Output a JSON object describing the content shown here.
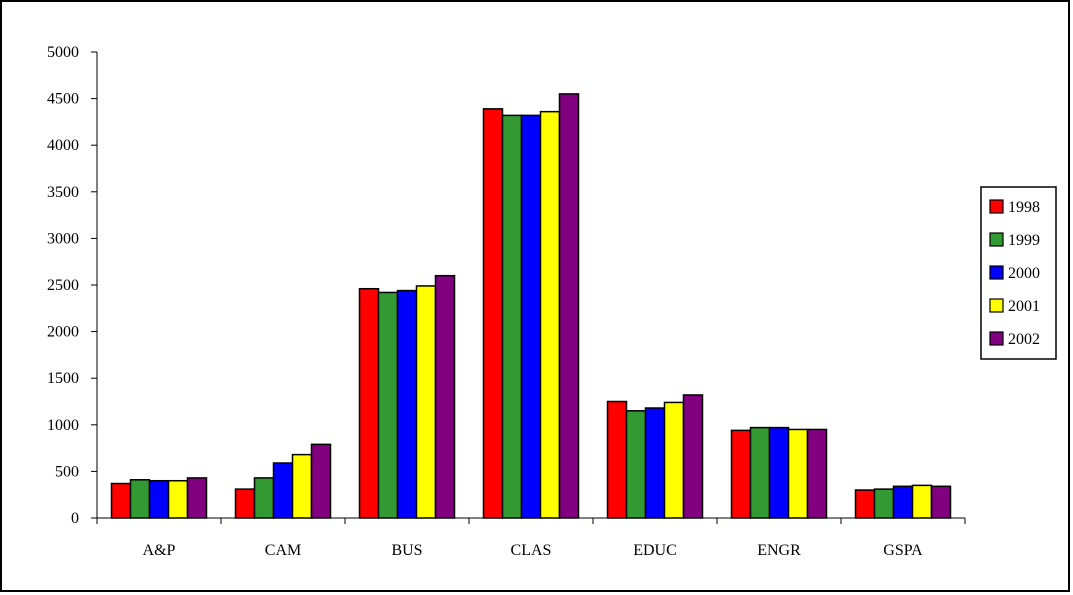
{
  "chart_data": {
    "type": "bar",
    "title": "",
    "xlabel": "",
    "ylabel": "",
    "categories": [
      "A&P",
      "CAM",
      "BUS",
      "CLAS",
      "EDUC",
      "ENGR",
      "GSPA"
    ],
    "ylim": [
      0,
      5000
    ],
    "yticks": [
      0,
      500,
      1000,
      1500,
      2000,
      2500,
      3000,
      3500,
      4000,
      4500,
      5000
    ],
    "grid": false,
    "legend_position": "right",
    "series": [
      {
        "name": "1998",
        "color": "#ff0000",
        "values": [
          370,
          310,
          2460,
          4390,
          1250,
          940,
          300
        ]
      },
      {
        "name": "1999",
        "color": "#339933",
        "values": [
          410,
          430,
          2420,
          4320,
          1150,
          970,
          310
        ]
      },
      {
        "name": "2000",
        "color": "#0000ff",
        "values": [
          400,
          590,
          2440,
          4320,
          1180,
          970,
          340
        ]
      },
      {
        "name": "2001",
        "color": "#ffff00",
        "values": [
          400,
          680,
          2490,
          4360,
          1240,
          950,
          350
        ]
      },
      {
        "name": "2002",
        "color": "#800080",
        "values": [
          430,
          790,
          2600,
          4550,
          1320,
          950,
          340
        ]
      }
    ]
  }
}
